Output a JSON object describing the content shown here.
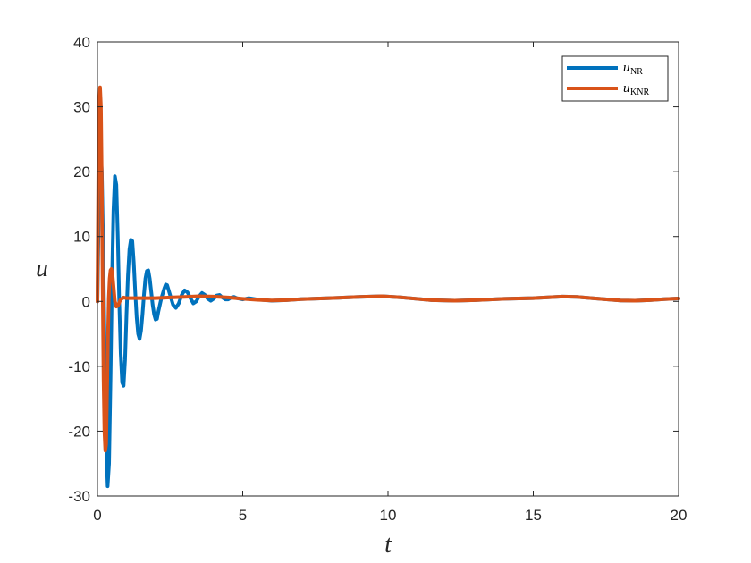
{
  "chart_data": {
    "type": "line",
    "xlabel": "t",
    "ylabel": "u",
    "xlim": [
      0,
      20
    ],
    "ylim": [
      -30,
      40
    ],
    "xticks": [
      0,
      5,
      10,
      15,
      20
    ],
    "yticks": [
      -30,
      -20,
      -10,
      0,
      10,
      20,
      30,
      40
    ],
    "grid": false,
    "legend_position": "top-right",
    "series": [
      {
        "name": "u_NR",
        "legend_main": "u",
        "legend_sub": "NR",
        "color": "#0072BD",
        "points": [
          [
            0.0,
            0.0
          ],
          [
            0.05,
            15.0
          ],
          [
            0.1,
            24.0
          ],
          [
            0.15,
            20.0
          ],
          [
            0.2,
            8.0
          ],
          [
            0.25,
            -8.0
          ],
          [
            0.3,
            -22.0
          ],
          [
            0.35,
            -28.5
          ],
          [
            0.4,
            -25.0
          ],
          [
            0.45,
            -12.0
          ],
          [
            0.5,
            3.0
          ],
          [
            0.55,
            14.0
          ],
          [
            0.6,
            19.3
          ],
          [
            0.65,
            18.0
          ],
          [
            0.7,
            10.0
          ],
          [
            0.75,
            0.0
          ],
          [
            0.8,
            -8.0
          ],
          [
            0.85,
            -12.5
          ],
          [
            0.9,
            -13.0
          ],
          [
            0.95,
            -9.0
          ],
          [
            1.0,
            -2.0
          ],
          [
            1.05,
            4.0
          ],
          [
            1.1,
            8.0
          ],
          [
            1.15,
            9.5
          ],
          [
            1.2,
            9.3
          ],
          [
            1.25,
            6.0
          ],
          [
            1.3,
            1.5
          ],
          [
            1.35,
            -2.5
          ],
          [
            1.4,
            -5.0
          ],
          [
            1.45,
            -5.8
          ],
          [
            1.5,
            -4.5
          ],
          [
            1.55,
            -2.0
          ],
          [
            1.6,
            1.0
          ],
          [
            1.65,
            3.5
          ],
          [
            1.7,
            4.7
          ],
          [
            1.75,
            4.8
          ],
          [
            1.8,
            3.5
          ],
          [
            1.85,
            1.5
          ],
          [
            1.9,
            -0.5
          ],
          [
            1.95,
            -2.0
          ],
          [
            2.0,
            -2.8
          ],
          [
            2.05,
            -2.7
          ],
          [
            2.1,
            -1.5
          ],
          [
            2.2,
            0.5
          ],
          [
            2.3,
            2.0
          ],
          [
            2.35,
            2.6
          ],
          [
            2.4,
            2.5
          ],
          [
            2.5,
            1.0
          ],
          [
            2.6,
            -0.5
          ],
          [
            2.7,
            -1.0
          ],
          [
            2.8,
            -0.3
          ],
          [
            2.9,
            1.0
          ],
          [
            3.0,
            1.7
          ],
          [
            3.1,
            1.4
          ],
          [
            3.2,
            0.5
          ],
          [
            3.3,
            -0.3
          ],
          [
            3.4,
            0.0
          ],
          [
            3.5,
            0.8
          ],
          [
            3.6,
            1.3
          ],
          [
            3.7,
            1.0
          ],
          [
            3.8,
            0.4
          ],
          [
            3.9,
            0.1
          ],
          [
            4.0,
            0.4
          ],
          [
            4.1,
            0.9
          ],
          [
            4.2,
            1.0
          ],
          [
            4.3,
            0.6
          ],
          [
            4.4,
            0.3
          ],
          [
            4.5,
            0.3
          ],
          [
            4.6,
            0.6
          ],
          [
            4.7,
            0.7
          ],
          [
            4.8,
            0.5
          ],
          [
            5.0,
            0.3
          ],
          [
            5.2,
            0.5
          ],
          [
            5.5,
            0.3
          ],
          [
            6.0,
            0.1
          ],
          [
            6.5,
            0.2
          ],
          [
            7.0,
            0.35
          ],
          [
            8.0,
            0.5
          ],
          [
            9.0,
            0.7
          ],
          [
            9.8,
            0.8
          ],
          [
            10.5,
            0.6
          ],
          [
            11.5,
            0.2
          ],
          [
            12.3,
            0.1
          ],
          [
            13.0,
            0.2
          ],
          [
            14.0,
            0.4
          ],
          [
            15.0,
            0.5
          ],
          [
            16.0,
            0.75
          ],
          [
            16.5,
            0.7
          ],
          [
            17.0,
            0.5
          ],
          [
            18.0,
            0.15
          ],
          [
            18.5,
            0.1
          ],
          [
            19.0,
            0.2
          ],
          [
            19.5,
            0.35
          ],
          [
            20.0,
            0.45
          ]
        ]
      },
      {
        "name": "u_KNR",
        "legend_main": "u",
        "legend_sub": "KNR",
        "color": "#D95319",
        "points": [
          [
            0.0,
            0.0
          ],
          [
            0.03,
            20.0
          ],
          [
            0.06,
            30.0
          ],
          [
            0.09,
            33.0
          ],
          [
            0.12,
            30.0
          ],
          [
            0.15,
            18.0
          ],
          [
            0.18,
            2.0
          ],
          [
            0.21,
            -12.0
          ],
          [
            0.24,
            -20.0
          ],
          [
            0.27,
            -23.0
          ],
          [
            0.3,
            -22.0
          ],
          [
            0.33,
            -14.0
          ],
          [
            0.36,
            -6.0
          ],
          [
            0.39,
            0.5
          ],
          [
            0.42,
            3.5
          ],
          [
            0.45,
            4.8
          ],
          [
            0.48,
            5.0
          ],
          [
            0.52,
            4.0
          ],
          [
            0.56,
            2.0
          ],
          [
            0.6,
            0.0
          ],
          [
            0.65,
            -0.8
          ],
          [
            0.7,
            -0.7
          ],
          [
            0.75,
            -0.2
          ],
          [
            0.8,
            0.3
          ],
          [
            0.9,
            0.6
          ],
          [
            1.0,
            0.5
          ],
          [
            1.5,
            0.5
          ],
          [
            2.0,
            0.5
          ],
          [
            2.5,
            0.6
          ],
          [
            3.0,
            0.7
          ],
          [
            3.5,
            0.8
          ],
          [
            4.0,
            0.75
          ],
          [
            4.5,
            0.6
          ],
          [
            5.0,
            0.4
          ],
          [
            5.5,
            0.25
          ],
          [
            6.0,
            0.15
          ],
          [
            6.5,
            0.2
          ],
          [
            7.0,
            0.35
          ],
          [
            8.0,
            0.5
          ],
          [
            9.0,
            0.7
          ],
          [
            9.8,
            0.8
          ],
          [
            10.5,
            0.6
          ],
          [
            11.5,
            0.2
          ],
          [
            12.3,
            0.1
          ],
          [
            13.0,
            0.2
          ],
          [
            14.0,
            0.4
          ],
          [
            15.0,
            0.5
          ],
          [
            16.0,
            0.75
          ],
          [
            16.5,
            0.7
          ],
          [
            17.0,
            0.5
          ],
          [
            18.0,
            0.15
          ],
          [
            18.5,
            0.1
          ],
          [
            19.0,
            0.2
          ],
          [
            19.5,
            0.35
          ],
          [
            20.0,
            0.45
          ]
        ]
      }
    ]
  }
}
